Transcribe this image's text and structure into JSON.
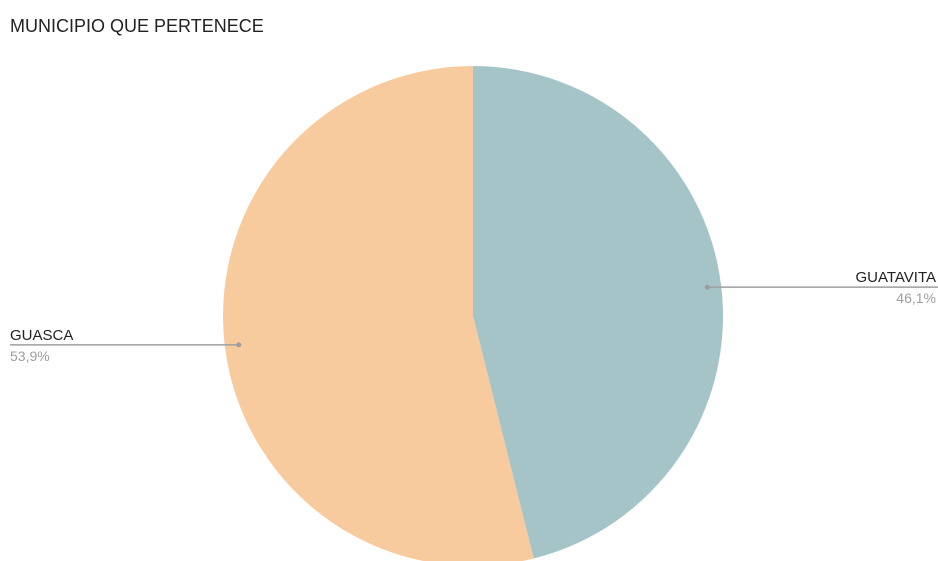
{
  "chart_data": {
    "type": "pie",
    "title": "MUNICIPIO QUE PERTENECE",
    "slices": [
      {
        "label": "GUATAVITA",
        "value": 46.1,
        "display": "46,1%",
        "color": "#a5c4c8"
      },
      {
        "label": "GUASCA",
        "value": 53.9,
        "display": "53,9%",
        "color": "#f8cb9f"
      }
    ],
    "start_angle": "12 o'clock",
    "direction": "clockwise",
    "legend": "none"
  }
}
